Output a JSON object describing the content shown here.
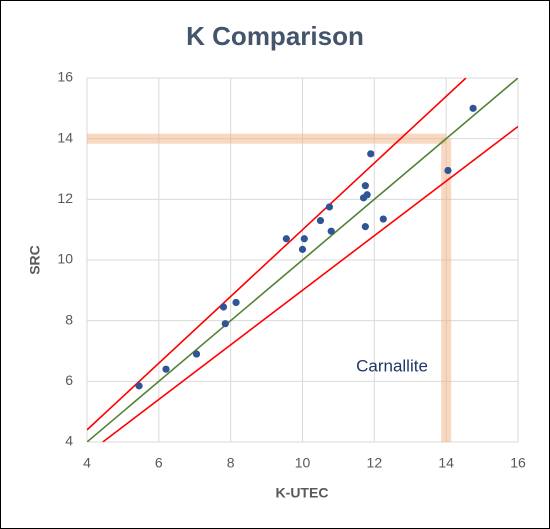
{
  "chart_data": {
    "type": "scatter",
    "title": "K Comparison",
    "x_label": "K-UTEC",
    "y_label": "SRC",
    "annotation": "Carnallite",
    "xlim": [
      4,
      16
    ],
    "xticks": [
      4,
      6,
      8,
      10,
      12,
      14,
      16
    ],
    "ylim": [
      4,
      16
    ],
    "yticks": [
      4,
      6,
      8,
      10,
      12,
      14,
      16
    ],
    "grid": true,
    "highlight": {
      "x": 14,
      "y": 14,
      "color": "#f4b183"
    },
    "points": {
      "color": "#2f5597",
      "x": [
        5.45,
        6.2,
        7.05,
        7.8,
        7.85,
        8.15,
        9.55,
        10.0,
        10.05,
        10.5,
        10.75,
        10.8,
        11.7,
        11.75,
        11.8,
        11.75,
        11.9,
        12.25,
        14.05,
        14.75
      ],
      "values": [
        5.85,
        6.4,
        6.9,
        8.45,
        7.9,
        8.6,
        10.7,
        10.35,
        10.7,
        11.3,
        11.75,
        10.95,
        12.05,
        12.45,
        12.15,
        11.1,
        13.5,
        11.35,
        12.95,
        15.0
      ]
    },
    "lines": [
      {
        "color": "#548235",
        "x": [
          4,
          16
        ],
        "values": [
          4,
          16
        ]
      },
      {
        "color": "#ff0000",
        "x": [
          4,
          14.55
        ],
        "values": [
          4.4,
          16
        ]
      },
      {
        "color": "#ff0000",
        "x": [
          4.44,
          16
        ],
        "values": [
          4,
          14.4
        ]
      }
    ]
  }
}
